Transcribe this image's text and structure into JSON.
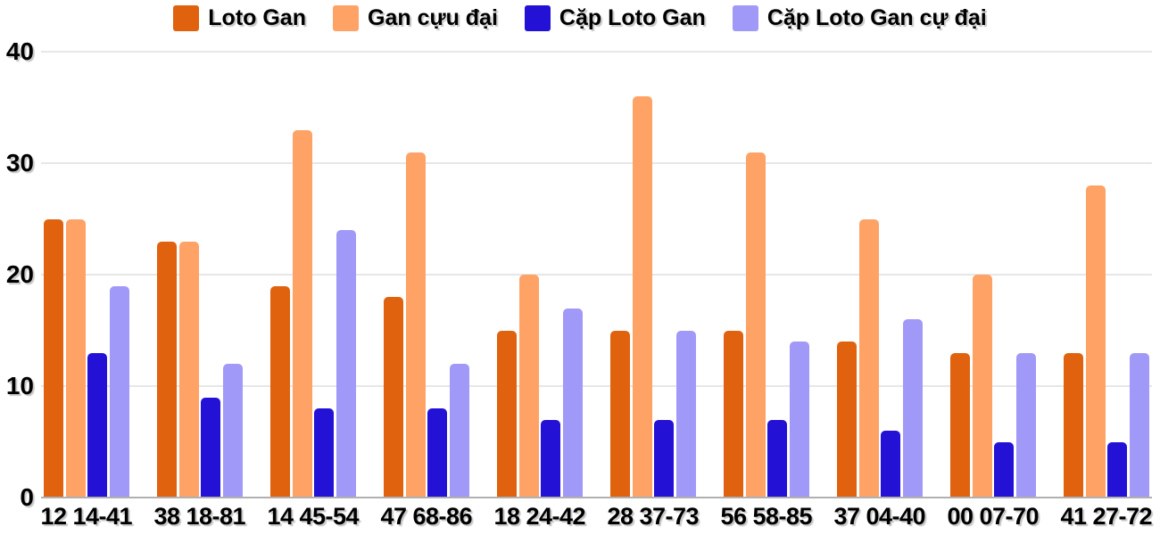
{
  "chart_data": {
    "type": "bar",
    "title": "",
    "xlabel": "",
    "ylabel": "",
    "categories": [
      "12 14-41",
      "38 18-81",
      "14 45-54",
      "47 68-86",
      "18 24-42",
      "28 37-73",
      "56 58-85",
      "37 04-40",
      "00 07-70",
      "41 27-72"
    ],
    "series": [
      {
        "name": "Loto Gan",
        "color": "#E0620F",
        "values": [
          25,
          23,
          19,
          18,
          15,
          15,
          15,
          14,
          13,
          13
        ]
      },
      {
        "name": "Gan cựu đại",
        "color": "#FFA266",
        "values": [
          25,
          23,
          33,
          31,
          20,
          36,
          31,
          25,
          20,
          28
        ]
      },
      {
        "name": "Cặp Loto Gan",
        "color": "#2411D6",
        "values": [
          13,
          9,
          8,
          8,
          7,
          7,
          7,
          6,
          5,
          5
        ]
      },
      {
        "name": "Cặp Loto Gan cự đại",
        "color": "#A199F8",
        "values": [
          19,
          12,
          24,
          12,
          17,
          15,
          14,
          16,
          13,
          13
        ]
      }
    ],
    "ylim": [
      0,
      40
    ],
    "yticks": [
      40,
      30,
      20,
      10,
      0
    ],
    "grid": true,
    "legend_position": "top",
    "colors": {
      "gridline": "#E7E7E7",
      "axis_line": "#B0B0B0",
      "text": "#000000",
      "background": "#FFFFFF"
    }
  }
}
